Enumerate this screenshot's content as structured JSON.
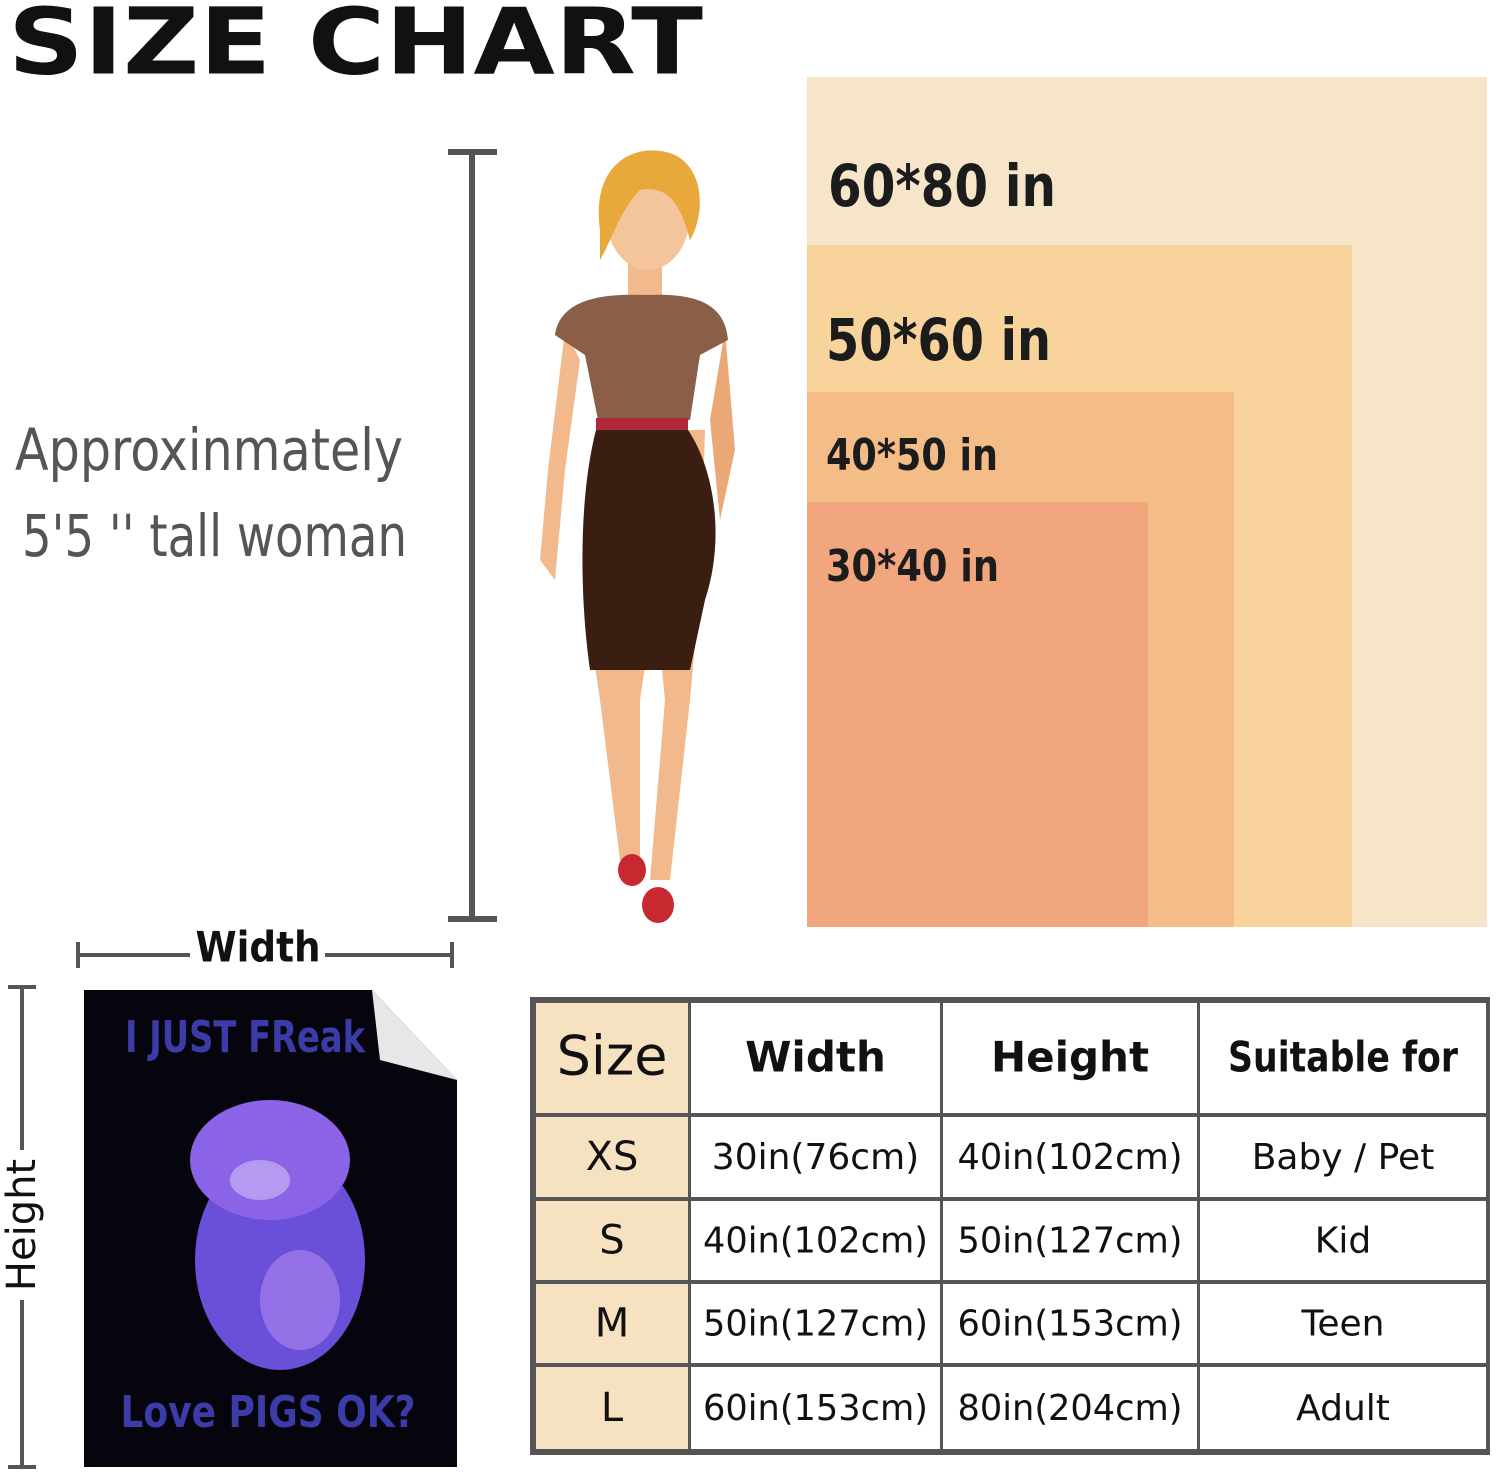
{
  "header": {
    "title": "SIZE CHART"
  },
  "size_labels": [
    "60*80 in",
    "50*60 in",
    "40*50 in",
    "30*40 in"
  ],
  "woman_caption": [
    "Approxinmately",
    "5'5 '' tall woman"
  ],
  "diagram": {
    "width_label": "Width",
    "height_label": "Height"
  },
  "blanket_text": [
    "I JUST FReak",
    "Love PIGS OK?"
  ],
  "table": {
    "columns": [
      "Size",
      "Width",
      "Height",
      "Suitable for"
    ],
    "rows": [
      [
        "XS",
        "30in(76cm)",
        "40in(102cm)",
        "Baby / Pet"
      ],
      [
        "S",
        "40in(102cm)",
        "50in(127cm)",
        "Kid"
      ],
      [
        "M",
        "50in(127cm)",
        "60in(153cm)",
        "Teen"
      ],
      [
        "L",
        "60in(153cm)",
        "80in(204cm)",
        "Adult"
      ]
    ]
  }
}
